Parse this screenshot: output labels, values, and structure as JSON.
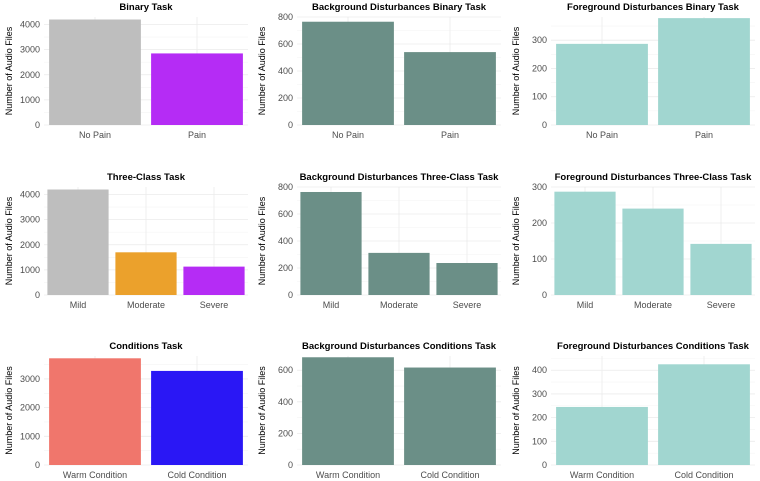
{
  "colors": {
    "no_pain": "#bebebe",
    "pain": "#b52cf5",
    "moderate": "#eba12c",
    "warm": "#f0766c",
    "cold": "#2a17f5",
    "background": "#6b8f87",
    "foreground": "#a1d6d0"
  },
  "chart_data": [
    {
      "type": "bar",
      "title": "Binary Task",
      "ylabel": "Number of Audio Files",
      "categories": [
        "No Pain",
        "Pain"
      ],
      "values": [
        4200,
        2850
      ],
      "colors": [
        "#bebebe",
        "#b52cf5"
      ],
      "ylim": [
        0,
        4300
      ],
      "yticks": [
        0,
        1000,
        2000,
        3000,
        4000
      ]
    },
    {
      "type": "bar",
      "title": "Background Disturbances Binary Task",
      "ylabel": "Number of Audio Files",
      "categories": [
        "No Pain",
        "Pain"
      ],
      "values": [
        765,
        540
      ],
      "colors": [
        "#6b8f87",
        "#6b8f87"
      ],
      "ylim": [
        0,
        800
      ],
      "yticks": [
        0,
        200,
        400,
        600,
        800
      ]
    },
    {
      "type": "bar",
      "title": "Foreground Disturbances Binary Task",
      "ylabel": "Number of Audio Files",
      "categories": [
        "No Pain",
        "Pain"
      ],
      "values": [
        287,
        378
      ],
      "colors": [
        "#a1d6d0",
        "#a1d6d0"
      ],
      "ylim": [
        0,
        382
      ],
      "yticks": [
        0,
        100,
        200,
        300
      ]
    },
    {
      "type": "bar",
      "title": "Three-Class Task",
      "ylabel": "Number of Audio Files",
      "categories": [
        "Mild",
        "Moderate",
        "Severe"
      ],
      "values": [
        4200,
        1700,
        1130
      ],
      "colors": [
        "#bebebe",
        "#eba12c",
        "#b52cf5"
      ],
      "ylim": [
        0,
        4300
      ],
      "yticks": [
        0,
        1000,
        2000,
        3000,
        4000
      ]
    },
    {
      "type": "bar",
      "title": "Background Disturbances Three-Class Task",
      "ylabel": "Number of Audio Files",
      "categories": [
        "Mild",
        "Moderate",
        "Severe"
      ],
      "values": [
        763,
        312,
        237
      ],
      "colors": [
        "#6b8f87",
        "#6b8f87",
        "#6b8f87"
      ],
      "ylim": [
        0,
        800
      ],
      "yticks": [
        0,
        200,
        400,
        600,
        800
      ]
    },
    {
      "type": "bar",
      "title": "Foreground Disturbances Three-Class Task",
      "ylabel": "Number of Audio Files",
      "categories": [
        "Mild",
        "Moderate",
        "Severe"
      ],
      "values": [
        287,
        240,
        142
      ],
      "colors": [
        "#a1d6d0",
        "#a1d6d0",
        "#a1d6d0"
      ],
      "ylim": [
        0,
        300
      ],
      "yticks": [
        0,
        100,
        200,
        300
      ]
    },
    {
      "type": "bar",
      "title": "Conditions Task",
      "ylabel": "Number of Audio Files",
      "categories": [
        "Warm Condition",
        "Cold Condition"
      ],
      "values": [
        3720,
        3280
      ],
      "colors": [
        "#f0766c",
        "#2a17f5"
      ],
      "ylim": [
        0,
        3800
      ],
      "yticks": [
        0,
        1000,
        2000,
        3000
      ]
    },
    {
      "type": "bar",
      "title": "Background Disturbances Conditions Task",
      "ylabel": "Number of Audio Files",
      "categories": [
        "Warm Condition",
        "Cold Condition"
      ],
      "values": [
        682,
        617
      ],
      "colors": [
        "#6b8f87",
        "#6b8f87"
      ],
      "ylim": [
        0,
        690
      ],
      "yticks": [
        0,
        200,
        400,
        600
      ]
    },
    {
      "type": "bar",
      "title": "Foreground Disturbances Conditions Task",
      "ylabel": "Number of Audio Files",
      "categories": [
        "Warm Condition",
        "Cold Condition"
      ],
      "values": [
        245,
        425
      ],
      "colors": [
        "#a1d6d0",
        "#a1d6d0"
      ],
      "ylim": [
        0,
        460
      ],
      "yticks": [
        0,
        100,
        200,
        300,
        400
      ]
    }
  ]
}
